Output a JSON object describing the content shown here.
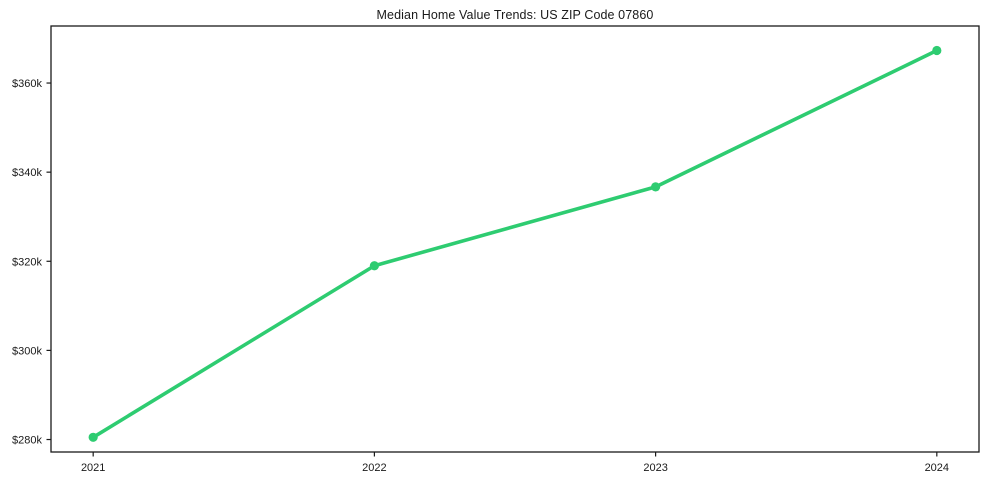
{
  "chart_data": {
    "type": "line",
    "title": "Median Home Value Trends: US ZIP Code 07860",
    "x": [
      2021,
      2022,
      2023,
      2024
    ],
    "series": [
      {
        "name": "Median Home Value",
        "values": [
          280500,
          319000,
          336700,
          367300
        ]
      }
    ],
    "x_tick_labels": [
      "2021",
      "2022",
      "2023",
      "2024"
    ],
    "y_ticks": [
      {
        "value": 280000,
        "label": "$280k"
      },
      {
        "value": 300000,
        "label": "$300k"
      },
      {
        "value": 320000,
        "label": "$320k"
      },
      {
        "value": 340000,
        "label": "$340k"
      },
      {
        "value": 360000,
        "label": "$360k"
      }
    ],
    "xlim": [
      2020.85,
      2024.15
    ],
    "ylim": [
      277200,
      372800
    ],
    "grid": false,
    "legend": null,
    "marker": "circle",
    "colors": {
      "line": "#2ecc71",
      "marker": "#2ecc71",
      "axis": "#1a1a1a",
      "text": "#1a1a1a",
      "background": "#ffffff"
    }
  }
}
